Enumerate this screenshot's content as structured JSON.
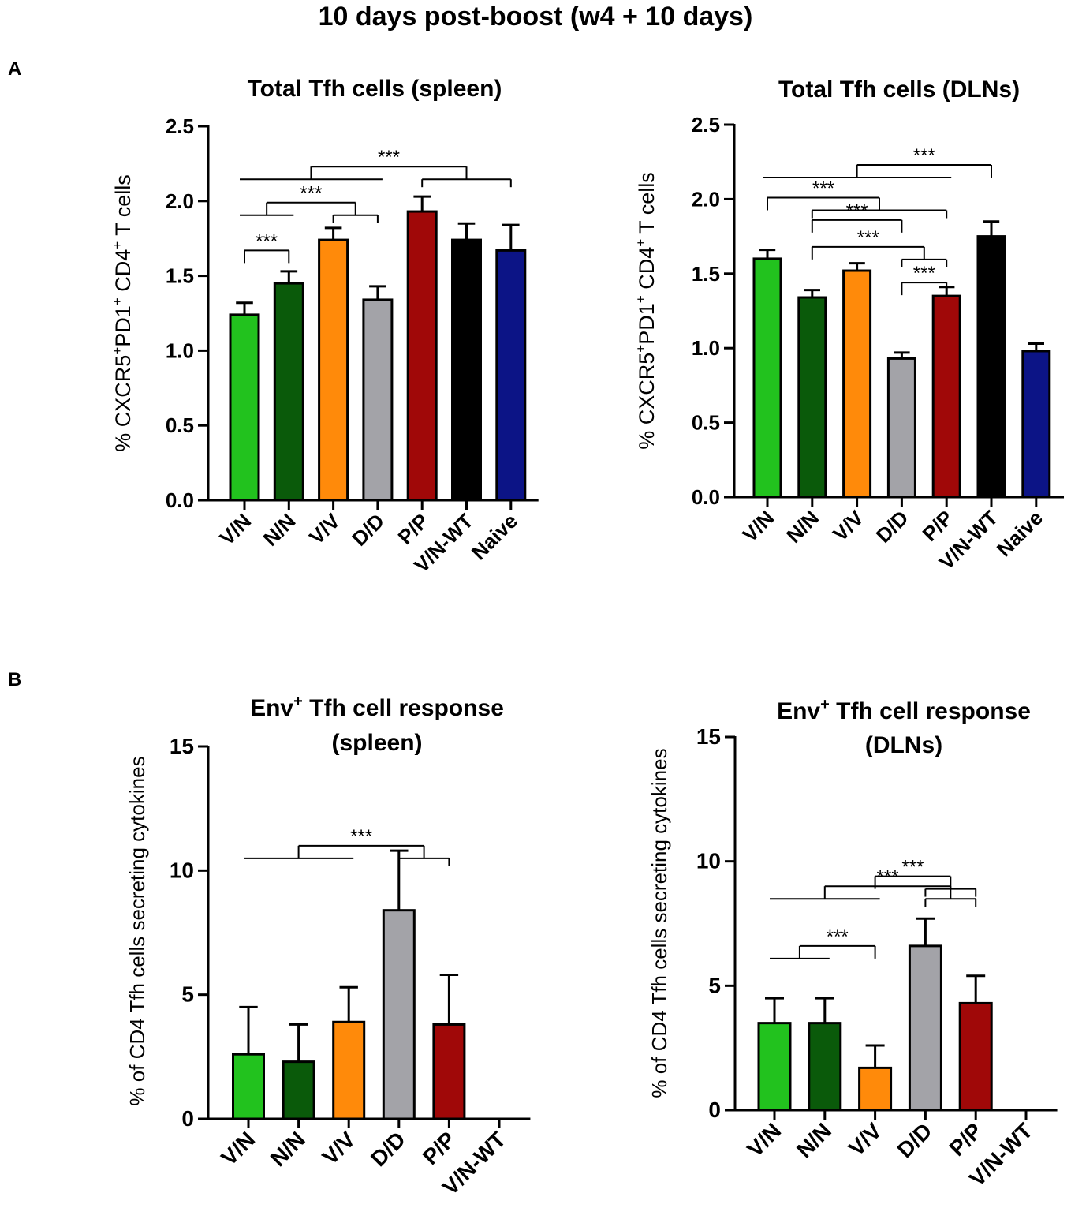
{
  "figure": {
    "title": "10 days post-boost (w4 + 10 days)",
    "panel_labels": [
      "A",
      "B"
    ]
  },
  "colors": {
    "V/N": "#22c21e",
    "N/N": "#0a5a0a",
    "V/V": "#ff8a0a",
    "D/D": "#a3a3a8",
    "P/P": "#a00808",
    "V/N-WT": "#000000",
    "Naive": "#0c1486"
  },
  "chart_data": [
    {
      "id": "tfh-spleen",
      "type": "bar",
      "title": "Total Tfh cells (spleen)",
      "title_sup": "",
      "title_line2": "",
      "ylabel_parts": [
        "% CXCR5",
        "+",
        "PD1",
        "+",
        " CD4",
        "+",
        " T cells"
      ],
      "categories": [
        "V/N",
        "N/N",
        "V/V",
        "D/D",
        "P/P",
        "V/N-WT",
        "Naive"
      ],
      "values": [
        1.24,
        1.45,
        1.74,
        1.34,
        1.93,
        1.74,
        1.67
      ],
      "errors": [
        0.08,
        0.08,
        0.08,
        0.09,
        0.1,
        0.11,
        0.17
      ],
      "ylim": [
        0,
        2.5
      ],
      "yticks": [
        "0.0",
        "0.5",
        "1.0",
        "1.5",
        "2.0",
        "2.5"
      ],
      "significance": [
        {
          "label": "***",
          "level": 1.67,
          "from": [
            0
          ],
          "to": [
            1
          ]
        },
        {
          "label": "***",
          "level": 1.99,
          "from": [
            0,
            1
          ],
          "to": [
            2,
            3
          ]
        },
        {
          "label": "***",
          "level": 2.23,
          "from": [
            0,
            1,
            2,
            3
          ],
          "to": [
            4,
            5,
            6
          ]
        }
      ]
    },
    {
      "id": "tfh-dlns",
      "type": "bar",
      "title": "Total Tfh cells (DLNs)",
      "title_sup": "",
      "title_line2": "",
      "ylabel_parts": [
        "% CXCR5",
        "+",
        "PD1",
        "+",
        " CD4",
        "+",
        " T cells"
      ],
      "categories": [
        "V/N",
        "N/N",
        "V/V",
        "D/D",
        "P/P",
        "V/N-WT",
        "Naive"
      ],
      "values": [
        1.6,
        1.34,
        1.52,
        0.93,
        1.35,
        1.75,
        0.98
      ],
      "errors": [
        0.06,
        0.05,
        0.05,
        0.04,
        0.06,
        0.1,
        0.05
      ],
      "ylim": [
        0,
        2.5
      ],
      "yticks": [
        "0.0",
        "0.5",
        "1.0",
        "1.5",
        "2.0",
        "2.5"
      ],
      "significance": [
        {
          "label": "***",
          "level": 1.44,
          "from": [
            3
          ],
          "to": [
            4
          ]
        },
        {
          "label": "***",
          "level": 1.68,
          "from": [
            1
          ],
          "to": [
            3,
            4
          ]
        },
        {
          "label": "***",
          "level": 1.86,
          "from": [
            1
          ],
          "to": [
            3
          ]
        },
        {
          "label": "***",
          "level": 2.01,
          "from": [
            0
          ],
          "to": [
            1,
            4
          ]
        },
        {
          "label": "***",
          "level": 2.23,
          "from": [
            0,
            4
          ],
          "to": [
            5
          ]
        }
      ]
    },
    {
      "id": "env-tfh-spleen",
      "type": "bar",
      "title": "Env",
      "title_sup": "+",
      "title_rest": " Tfh cell response",
      "title_line2": "(spleen)",
      "ylabel_parts": [
        "% of CD4 Tfh cells secreting cytokines"
      ],
      "categories": [
        "V/N",
        "N/N",
        "V/V",
        "D/D",
        "P/P",
        "V/N-WT"
      ],
      "values": [
        2.6,
        2.3,
        3.9,
        8.4,
        3.8,
        0
      ],
      "errors": [
        1.9,
        1.5,
        1.4,
        2.4,
        2.0,
        0
      ],
      "ylim": [
        0,
        15
      ],
      "yticks": [
        "0",
        "5",
        "10",
        "15"
      ],
      "significance": [
        {
          "label": "***",
          "level": 11.0,
          "from": [
            0,
            1,
            2
          ],
          "to": [
            3,
            4
          ]
        }
      ]
    },
    {
      "id": "env-tfh-dlns",
      "type": "bar",
      "title": "Env",
      "title_sup": "+",
      "title_rest": " Tfh cell response",
      "title_line2": "(DLNs)",
      "ylabel_parts": [
        "% of CD4 Tfh cells secreting cytokines"
      ],
      "categories": [
        "V/N",
        "N/N",
        "V/V",
        "D/D",
        "P/P",
        "V/N-WT"
      ],
      "values": [
        3.5,
        3.5,
        1.7,
        6.6,
        4.3,
        0
      ],
      "errors": [
        1.0,
        1.0,
        0.9,
        1.1,
        1.1,
        0
      ],
      "ylim": [
        0,
        15
      ],
      "yticks": [
        "0",
        "5",
        "10",
        "15"
      ],
      "significance": [
        {
          "label": "***",
          "level": 6.6,
          "from": [
            0,
            1
          ],
          "to": [
            2
          ]
        },
        {
          "label": "***",
          "level": 9.0,
          "from": [
            0,
            1,
            2
          ],
          "to": [
            3,
            4
          ]
        },
        {
          "label": "***",
          "level": 9.4,
          "from": [
            2
          ],
          "to": [
            3,
            4
          ]
        }
      ]
    }
  ]
}
